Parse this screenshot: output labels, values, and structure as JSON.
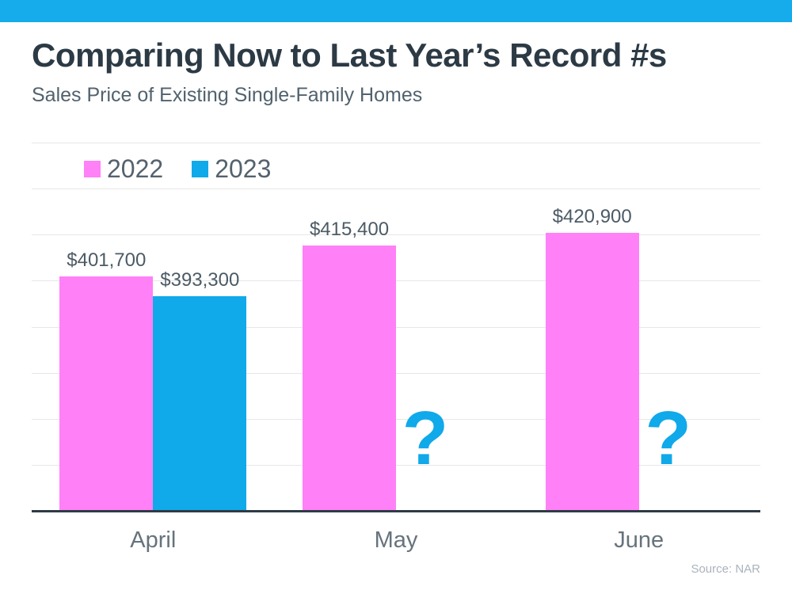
{
  "page": {
    "top_bar_color": "#16ACEC",
    "background_color": "#FFFFFF"
  },
  "header": {
    "title": "Comparing Now to Last Year’s Record #s",
    "subtitle": "Sales Price of Existing Single-Family Homes"
  },
  "source_note": "Source: NAR",
  "chart_data": {
    "type": "bar",
    "title": "Comparing Now to Last Year’s Record #s",
    "subtitle": "Sales Price of Existing Single-Family Homes",
    "categories": [
      "April",
      "May",
      "June"
    ],
    "series": [
      {
        "name": "2022",
        "color": "#FF80F7",
        "values": [
          401700,
          415400,
          420900
        ],
        "value_labels": [
          "$401,700",
          "$415,400",
          "$420,900"
        ]
      },
      {
        "name": "2023",
        "color": "#10A9EA",
        "values": [
          393300,
          null,
          null
        ],
        "value_labels": [
          "$393,300",
          null,
          null
        ]
      }
    ],
    "missing_value_marker": "?",
    "ylim": [
      300000,
      460000
    ],
    "gridline_step": 20000,
    "grid": true,
    "legend_position": "top-left",
    "xlabel": "",
    "ylabel": "",
    "colors": {
      "gridline": "#E7E7E7",
      "axis_line": "#2E3B45",
      "value_label_text": "#4C5B66",
      "month_label_text": "#66737D",
      "legend_text": "#54626D"
    }
  }
}
